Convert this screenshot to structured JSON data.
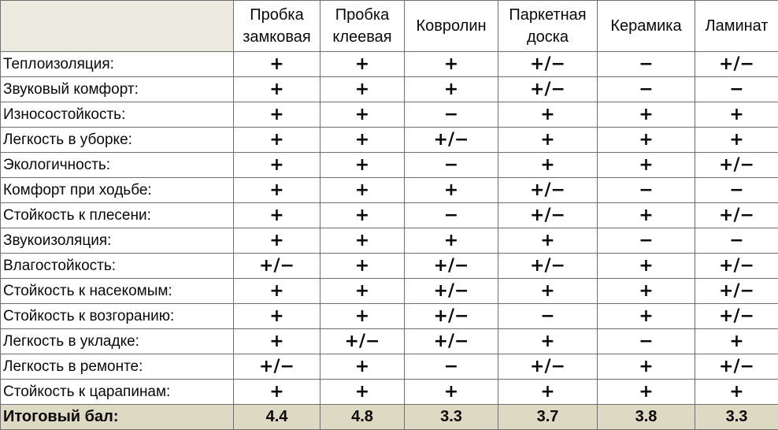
{
  "table": {
    "columns": [
      {
        "line1": "Пробка",
        "line2": "замковая"
      },
      {
        "line1": "Пробка",
        "line2": "клеевая"
      },
      {
        "line1": "Ковролин",
        "line2": ""
      },
      {
        "line1": "Паркетная",
        "line2": "доска"
      },
      {
        "line1": "Керамика",
        "line2": ""
      },
      {
        "line1": "Ламинат",
        "line2": ""
      }
    ],
    "rows": [
      {
        "label": "Теплоизоляция:",
        "values": [
          "+",
          "+",
          "+",
          "+/−",
          "−",
          "+/−"
        ]
      },
      {
        "label": "Звуковый комфорт:",
        "values": [
          "+",
          "+",
          "+",
          "+/−",
          "−",
          "−"
        ]
      },
      {
        "label": "Износостойкость:",
        "values": [
          "+",
          "+",
          "−",
          "+",
          "+",
          "+"
        ]
      },
      {
        "label": "Легкость в уборке:",
        "values": [
          "+",
          "+",
          "+/−",
          "+",
          "+",
          "+"
        ]
      },
      {
        "label": "Экологичность:",
        "values": [
          "+",
          "+",
          "−",
          "+",
          "+",
          "+/−"
        ]
      },
      {
        "label": "Комфорт при ходьбе:",
        "values": [
          "+",
          "+",
          "+",
          "+/−",
          "−",
          "−"
        ]
      },
      {
        "label": "Стойкость к плесени:",
        "values": [
          "+",
          "+",
          "−",
          "+/−",
          "+",
          "+/−"
        ]
      },
      {
        "label": "Звукоизоляция:",
        "values": [
          "+",
          "+",
          "+",
          "+",
          "−",
          "−"
        ]
      },
      {
        "label": "Влагостойкость:",
        "values": [
          "+/−",
          "+",
          "+/−",
          "+/−",
          "+",
          "+/−"
        ]
      },
      {
        "label": "Стойкость к насекомым:",
        "values": [
          "+",
          "+",
          "+/−",
          "+",
          "+",
          "+/−"
        ]
      },
      {
        "label": "Стойкость к возгоранию:",
        "values": [
          "+",
          "+",
          "+/−",
          "−",
          "+",
          "+/−"
        ]
      },
      {
        "label": "Легкость в укладке:",
        "values": [
          "+",
          "+/−",
          "+/−",
          "+",
          "−",
          "+"
        ]
      },
      {
        "label": "Легкость в ремонте:",
        "values": [
          "+/−",
          "+",
          "−",
          "+/−",
          "+",
          "+/−"
        ]
      },
      {
        "label": "Стойкость к царапинам:",
        "values": [
          "+",
          "+",
          "+",
          "+",
          "+",
          "+"
        ]
      }
    ],
    "total": {
      "label": "Итоговый бал:",
      "values": [
        "4.4",
        "4.8",
        "3.3",
        "3.7",
        "3.8",
        "3.3"
      ]
    }
  },
  "colors": {
    "header_corner_bg": "#eceade",
    "total_row_bg": "#ddd9c3",
    "border": "#6f6f6f"
  }
}
